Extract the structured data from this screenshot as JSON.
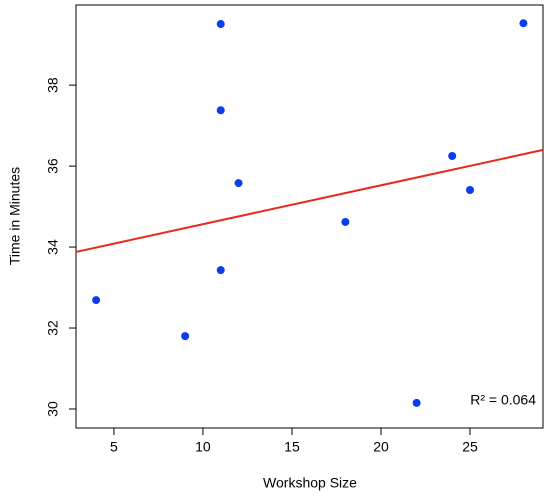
{
  "chart_data": {
    "type": "scatter",
    "x_label": "Workshop Size",
    "y_label": "Time in Minutes",
    "annotation": "R² = 0.064",
    "x": [
      4,
      9,
      11,
      11,
      11,
      12,
      18,
      22,
      24,
      25,
      28
    ],
    "values": [
      32.69,
      31.8,
      39.51,
      37.38,
      33.43,
      35.58,
      34.62,
      30.15,
      36.25,
      35.41,
      39.53
    ],
    "color": "#0a3cf0",
    "fit_line": {
      "x": [
        2.87,
        29.1
      ],
      "y": [
        33.88,
        36.4
      ],
      "color": "#e8291c"
    },
    "xlim": [
      2.87,
      29.1
    ],
    "ylim": [
      29.53,
      39.98
    ],
    "xticks": [
      5,
      10,
      15,
      20,
      25
    ],
    "yticks": [
      30,
      32,
      34,
      36,
      38
    ]
  }
}
